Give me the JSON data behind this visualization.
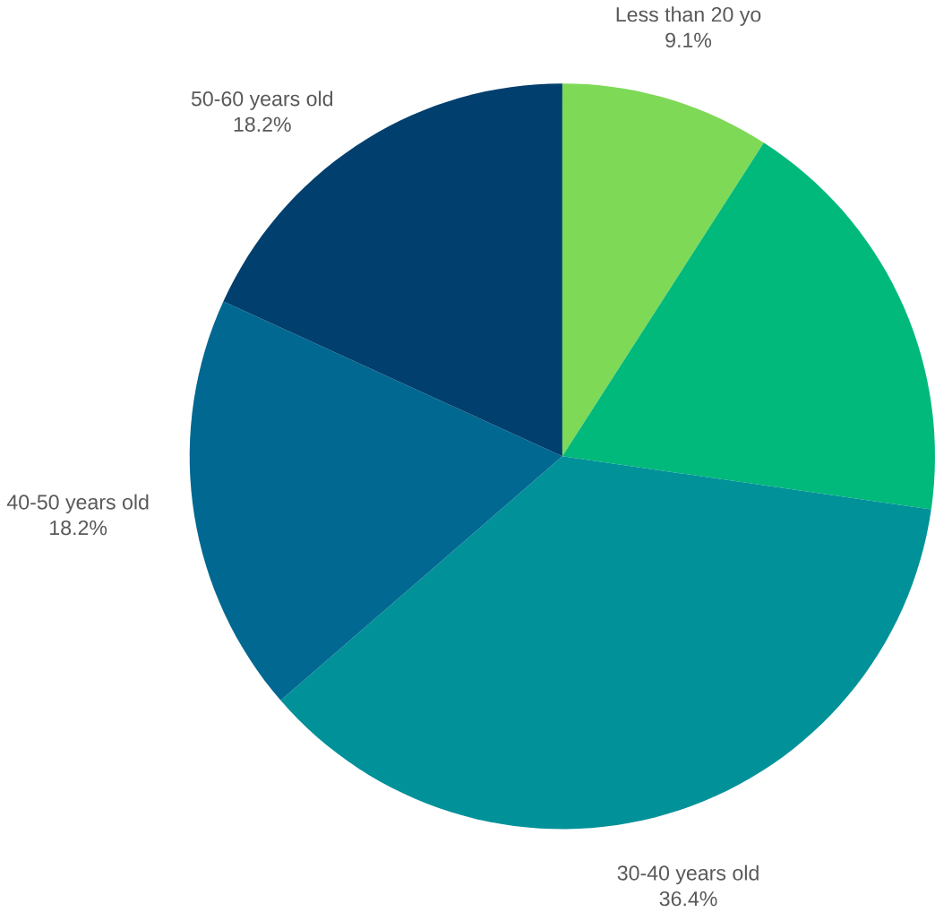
{
  "chart_data": {
    "type": "pie",
    "categories": [
      "Less than 20 yo",
      null,
      "30-40 years old",
      "40-50 years old",
      "50-60 years old"
    ],
    "values": [
      9.1,
      18.2,
      36.4,
      18.2,
      18.2
    ],
    "value_labels": [
      "9.1%",
      null,
      "36.4%",
      "18.2%",
      "18.2%"
    ],
    "colors": [
      "#7ed957",
      "#00b97a",
      "#009199",
      "#006891",
      "#003f6e"
    ]
  }
}
